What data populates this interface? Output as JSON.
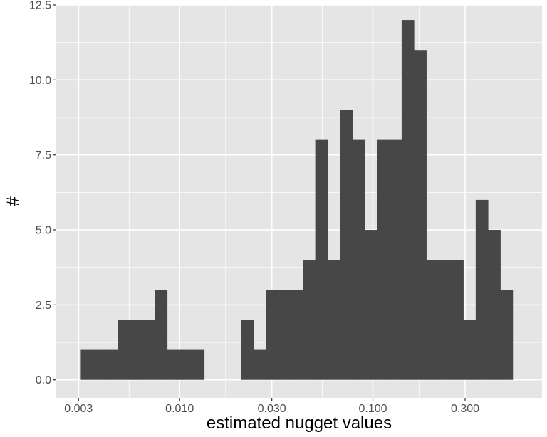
{
  "chart_data": {
    "type": "bar",
    "xlabel": "estimated nugget values",
    "ylabel": "#",
    "x_scale": "log10",
    "xlim": [
      0.0023,
      0.75
    ],
    "ylim": [
      -0.6,
      12.5
    ],
    "x_ticks": [
      {
        "value": 0.003,
        "label": "0.003"
      },
      {
        "value": 0.01,
        "label": "0.010"
      },
      {
        "value": 0.03,
        "label": "0.030"
      },
      {
        "value": 0.1,
        "label": "0.100"
      },
      {
        "value": 0.3,
        "label": "0.300"
      }
    ],
    "y_ticks": [
      {
        "value": 0,
        "label": "0.0"
      },
      {
        "value": 2.5,
        "label": "2.5"
      },
      {
        "value": 5,
        "label": "5.0"
      },
      {
        "value": 7.5,
        "label": "7.5"
      },
      {
        "value": 10,
        "label": "10.0"
      },
      {
        "value": 12.5,
        "label": "12.5"
      }
    ],
    "grid": true,
    "bins": [
      {
        "x0": 0.00308,
        "x1": 0.00356,
        "count": 1
      },
      {
        "x0": 0.00356,
        "x1": 0.00413,
        "count": 1
      },
      {
        "x0": 0.00413,
        "x1": 0.00479,
        "count": 1
      },
      {
        "x0": 0.00479,
        "x1": 0.00555,
        "count": 2
      },
      {
        "x0": 0.00555,
        "x1": 0.00642,
        "count": 2
      },
      {
        "x0": 0.00642,
        "x1": 0.00745,
        "count": 2
      },
      {
        "x0": 0.00745,
        "x1": 0.00862,
        "count": 3
      },
      {
        "x0": 0.00862,
        "x1": 0.00999,
        "count": 1
      },
      {
        "x0": 0.00999,
        "x1": 0.01157,
        "count": 1
      },
      {
        "x0": 0.01157,
        "x1": 0.0134,
        "count": 1
      },
      {
        "x0": 0.0134,
        "x1": 0.01552,
        "count": 0
      },
      {
        "x0": 0.01552,
        "x1": 0.01798,
        "count": 0
      },
      {
        "x0": 0.01798,
        "x1": 0.02083,
        "count": 0
      },
      {
        "x0": 0.02083,
        "x1": 0.02413,
        "count": 2
      },
      {
        "x0": 0.02413,
        "x1": 0.02795,
        "count": 1
      },
      {
        "x0": 0.02795,
        "x1": 0.03237,
        "count": 3
      },
      {
        "x0": 0.03237,
        "x1": 0.0375,
        "count": 3
      },
      {
        "x0": 0.0375,
        "x1": 0.04344,
        "count": 3
      },
      {
        "x0": 0.04344,
        "x1": 0.05032,
        "count": 4
      },
      {
        "x0": 0.05032,
        "x1": 0.05829,
        "count": 8
      },
      {
        "x0": 0.05829,
        "x1": 0.06752,
        "count": 4
      },
      {
        "x0": 0.06752,
        "x1": 0.07821,
        "count": 9
      },
      {
        "x0": 0.07821,
        "x1": 0.0906,
        "count": 8
      },
      {
        "x0": 0.0906,
        "x1": 0.10495,
        "count": 5
      },
      {
        "x0": 0.10495,
        "x1": 0.12157,
        "count": 8
      },
      {
        "x0": 0.12157,
        "x1": 0.14082,
        "count": 8
      },
      {
        "x0": 0.14082,
        "x1": 0.16313,
        "count": 12
      },
      {
        "x0": 0.16313,
        "x1": 0.18896,
        "count": 11
      },
      {
        "x0": 0.18896,
        "x1": 0.21889,
        "count": 4
      },
      {
        "x0": 0.21889,
        "x1": 0.25356,
        "count": 4
      },
      {
        "x0": 0.25356,
        "x1": 0.29372,
        "count": 4
      },
      {
        "x0": 0.29372,
        "x1": 0.34024,
        "count": 2
      },
      {
        "x0": 0.34024,
        "x1": 0.39413,
        "count": 6
      },
      {
        "x0": 0.39413,
        "x1": 0.45655,
        "count": 5
      },
      {
        "x0": 0.45655,
        "x1": 0.52886,
        "count": 3
      }
    ],
    "colors": {
      "bar_fill": "#474747",
      "panel_background": "#e5e5e5",
      "grid_line": "#ffffff",
      "tick_text": "#4d4d4d",
      "axis_title": "#000000"
    }
  }
}
